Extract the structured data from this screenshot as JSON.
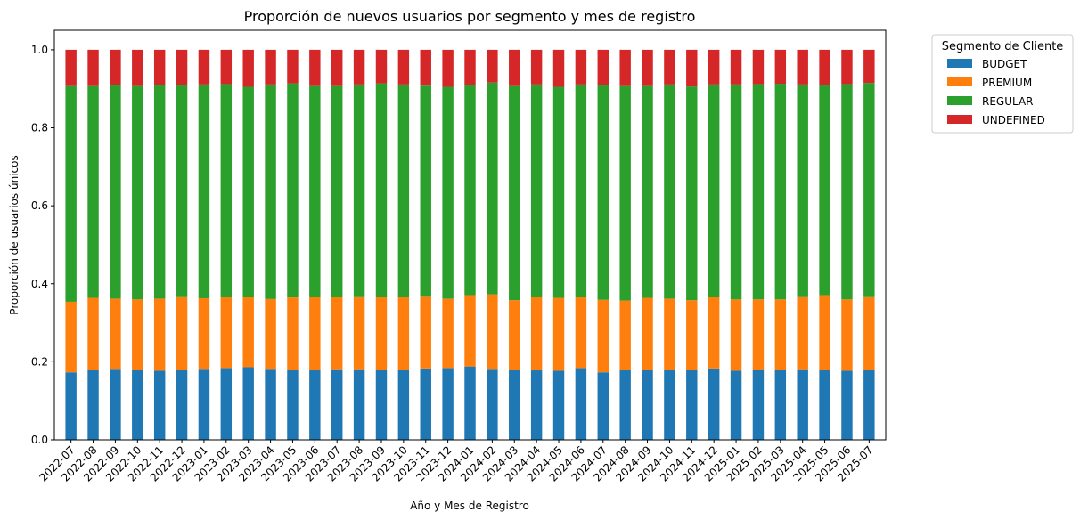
{
  "chart_data": {
    "type": "bar",
    "stacked": true,
    "title": "Proporción de nuevos usuarios por segmento y mes de registro",
    "xlabel": "Año y Mes de Registro",
    "ylabel": "Proporción de usuarios únicos",
    "ylim": [
      0,
      1.05
    ],
    "yticks": [
      "0.0",
      "0.2",
      "0.4",
      "0.6",
      "0.8",
      "1.0"
    ],
    "grid": false,
    "legend_title": "Segmento de Cliente",
    "legend_position": "outside-top-right",
    "categories": [
      "2022-07",
      "2022-08",
      "2022-09",
      "2022-10",
      "2022-11",
      "2022-12",
      "2023-01",
      "2023-02",
      "2023-03",
      "2023-04",
      "2023-05",
      "2023-06",
      "2023-07",
      "2023-08",
      "2023-09",
      "2023-10",
      "2023-11",
      "2023-12",
      "2024-01",
      "2024-02",
      "2024-03",
      "2024-04",
      "2024-05",
      "2024-06",
      "2024-07",
      "2024-08",
      "2024-09",
      "2024-10",
      "2024-11",
      "2024-12",
      "2025-01",
      "2025-02",
      "2025-03",
      "2025-04",
      "2025-05",
      "2025-06",
      "2025-07"
    ],
    "series": [
      {
        "name": "BUDGET",
        "color": "#1f77b4",
        "values": [
          0.173,
          0.18,
          0.182,
          0.18,
          0.177,
          0.179,
          0.182,
          0.184,
          0.186,
          0.182,
          0.179,
          0.18,
          0.181,
          0.181,
          0.18,
          0.18,
          0.183,
          0.184,
          0.188,
          0.182,
          0.179,
          0.178,
          0.177,
          0.184,
          0.173,
          0.179,
          0.179,
          0.179,
          0.18,
          0.183,
          0.177,
          0.18,
          0.179,
          0.181,
          0.179,
          0.177,
          0.179
        ]
      },
      {
        "name": "PREMIUM",
        "color": "#ff7f0e",
        "values": [
          0.181,
          0.184,
          0.18,
          0.18,
          0.185,
          0.189,
          0.181,
          0.183,
          0.18,
          0.179,
          0.186,
          0.186,
          0.185,
          0.187,
          0.186,
          0.186,
          0.186,
          0.178,
          0.183,
          0.191,
          0.179,
          0.188,
          0.187,
          0.182,
          0.186,
          0.178,
          0.185,
          0.183,
          0.178,
          0.183,
          0.183,
          0.18,
          0.181,
          0.187,
          0.192,
          0.183,
          0.189
        ]
      },
      {
        "name": "REGULAR",
        "color": "#2ca02c",
        "values": [
          0.553,
          0.543,
          0.547,
          0.547,
          0.548,
          0.541,
          0.548,
          0.545,
          0.539,
          0.55,
          0.549,
          0.541,
          0.541,
          0.543,
          0.548,
          0.545,
          0.539,
          0.543,
          0.538,
          0.543,
          0.549,
          0.545,
          0.541,
          0.545,
          0.551,
          0.55,
          0.543,
          0.549,
          0.548,
          0.545,
          0.551,
          0.552,
          0.553,
          0.543,
          0.538,
          0.552,
          0.547
        ]
      },
      {
        "name": "UNDEFINED",
        "color": "#d62728",
        "values": [
          0.093,
          0.093,
          0.091,
          0.093,
          0.09,
          0.091,
          0.089,
          0.088,
          0.095,
          0.089,
          0.086,
          0.093,
          0.093,
          0.089,
          0.086,
          0.089,
          0.092,
          0.095,
          0.091,
          0.084,
          0.093,
          0.089,
          0.095,
          0.089,
          0.09,
          0.093,
          0.093,
          0.089,
          0.094,
          0.089,
          0.089,
          0.088,
          0.087,
          0.089,
          0.091,
          0.088,
          0.085
        ]
      }
    ]
  }
}
